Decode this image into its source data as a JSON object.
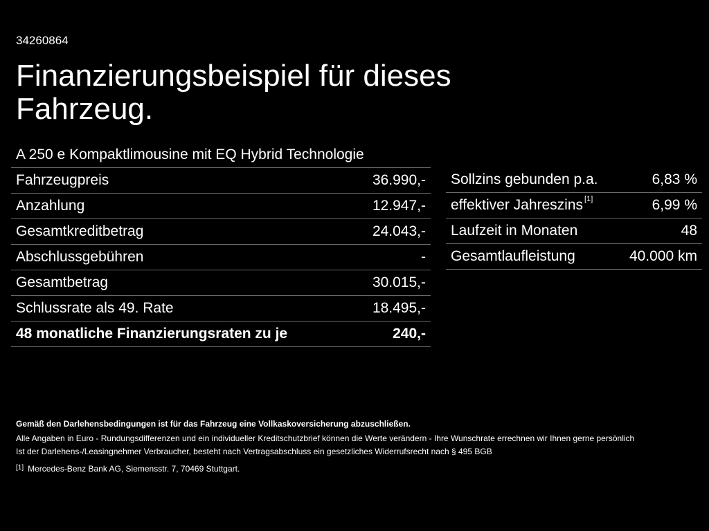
{
  "reference_number": "34260864",
  "title": "Finanzierungsbeispiel für dieses Fahrzeug.",
  "model": "A 250 e Kompaktlimousine mit EQ Hybrid Technologie",
  "financing": [
    {
      "label": "Fahrzeugpreis",
      "value": "36.990,-"
    },
    {
      "label": "Anzahlung",
      "value": "12.947,-"
    },
    {
      "label": "Gesamtkreditbetrag",
      "value": "24.043,-"
    },
    {
      "label": "Abschlussgebühren",
      "value": "-"
    },
    {
      "label": "Gesamtbetrag",
      "value": "30.015,-"
    },
    {
      "label": "Schlussrate als 49. Rate",
      "value": "18.495,-"
    },
    {
      "label": "48 monatliche Finanzierungsraten zu je",
      "value": "240,-"
    }
  ],
  "conditions": [
    {
      "label": "Sollzins gebunden p.a.",
      "value": "6,83 %"
    },
    {
      "label": "effektiver Jahreszins",
      "footnote": "[1]",
      "value": "6,99 %"
    },
    {
      "label": "Laufzeit in Monaten",
      "value": "48"
    },
    {
      "label": "Gesamtlaufleistung",
      "value": "40.000 km"
    }
  ],
  "disclaimer_bold": "Gemäß den Darlehensbedingungen ist für das Fahrzeug eine Vollkaskoversicherung abzuschließen.",
  "disclaimer_lines": [
    "Alle Angaben in Euro - Rundungsdifferenzen und ein individueller Kreditschutzbrief können die Werte verändern - Ihre Wunschrate errechnen wir Ihnen gerne persönlich",
    "Ist der Darlehens-/Leasingnehmer Verbraucher, besteht nach Vertragsabschluss ein gesetzliches Widerrufsrecht nach § 495 BGB"
  ],
  "footnote": {
    "marker": "[1]",
    "text": "Mercedes-Benz Bank AG, Siemensstr. 7, 70469 Stuttgart."
  }
}
